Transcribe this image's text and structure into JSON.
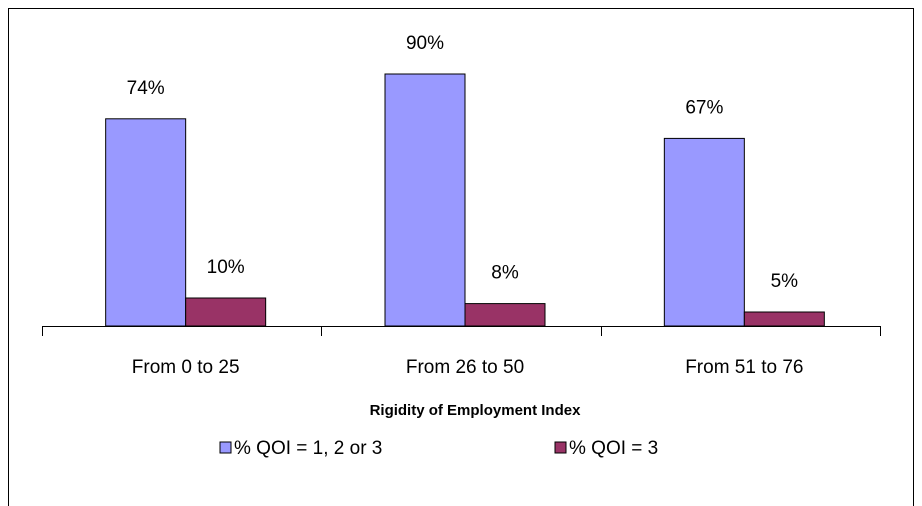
{
  "chart_data": {
    "type": "bar",
    "x_label": "Rigidity of Employment Index",
    "categories": [
      "From 0 to 25",
      "From 26 to 50",
      "From 51 to 76"
    ],
    "series": [
      {
        "name": "% QOI = 1, 2 or 3",
        "color": "#9999ff",
        "values": [
          74,
          90,
          67
        ],
        "value_labels": [
          "74%",
          "90%",
          "67%"
        ]
      },
      {
        "name": "% QOI = 3",
        "color": "#993366",
        "values": [
          10,
          8,
          5
        ],
        "value_labels": [
          "10%",
          "8%",
          "5%"
        ]
      }
    ],
    "ylim": [
      0,
      100
    ],
    "legend": "bottom"
  }
}
